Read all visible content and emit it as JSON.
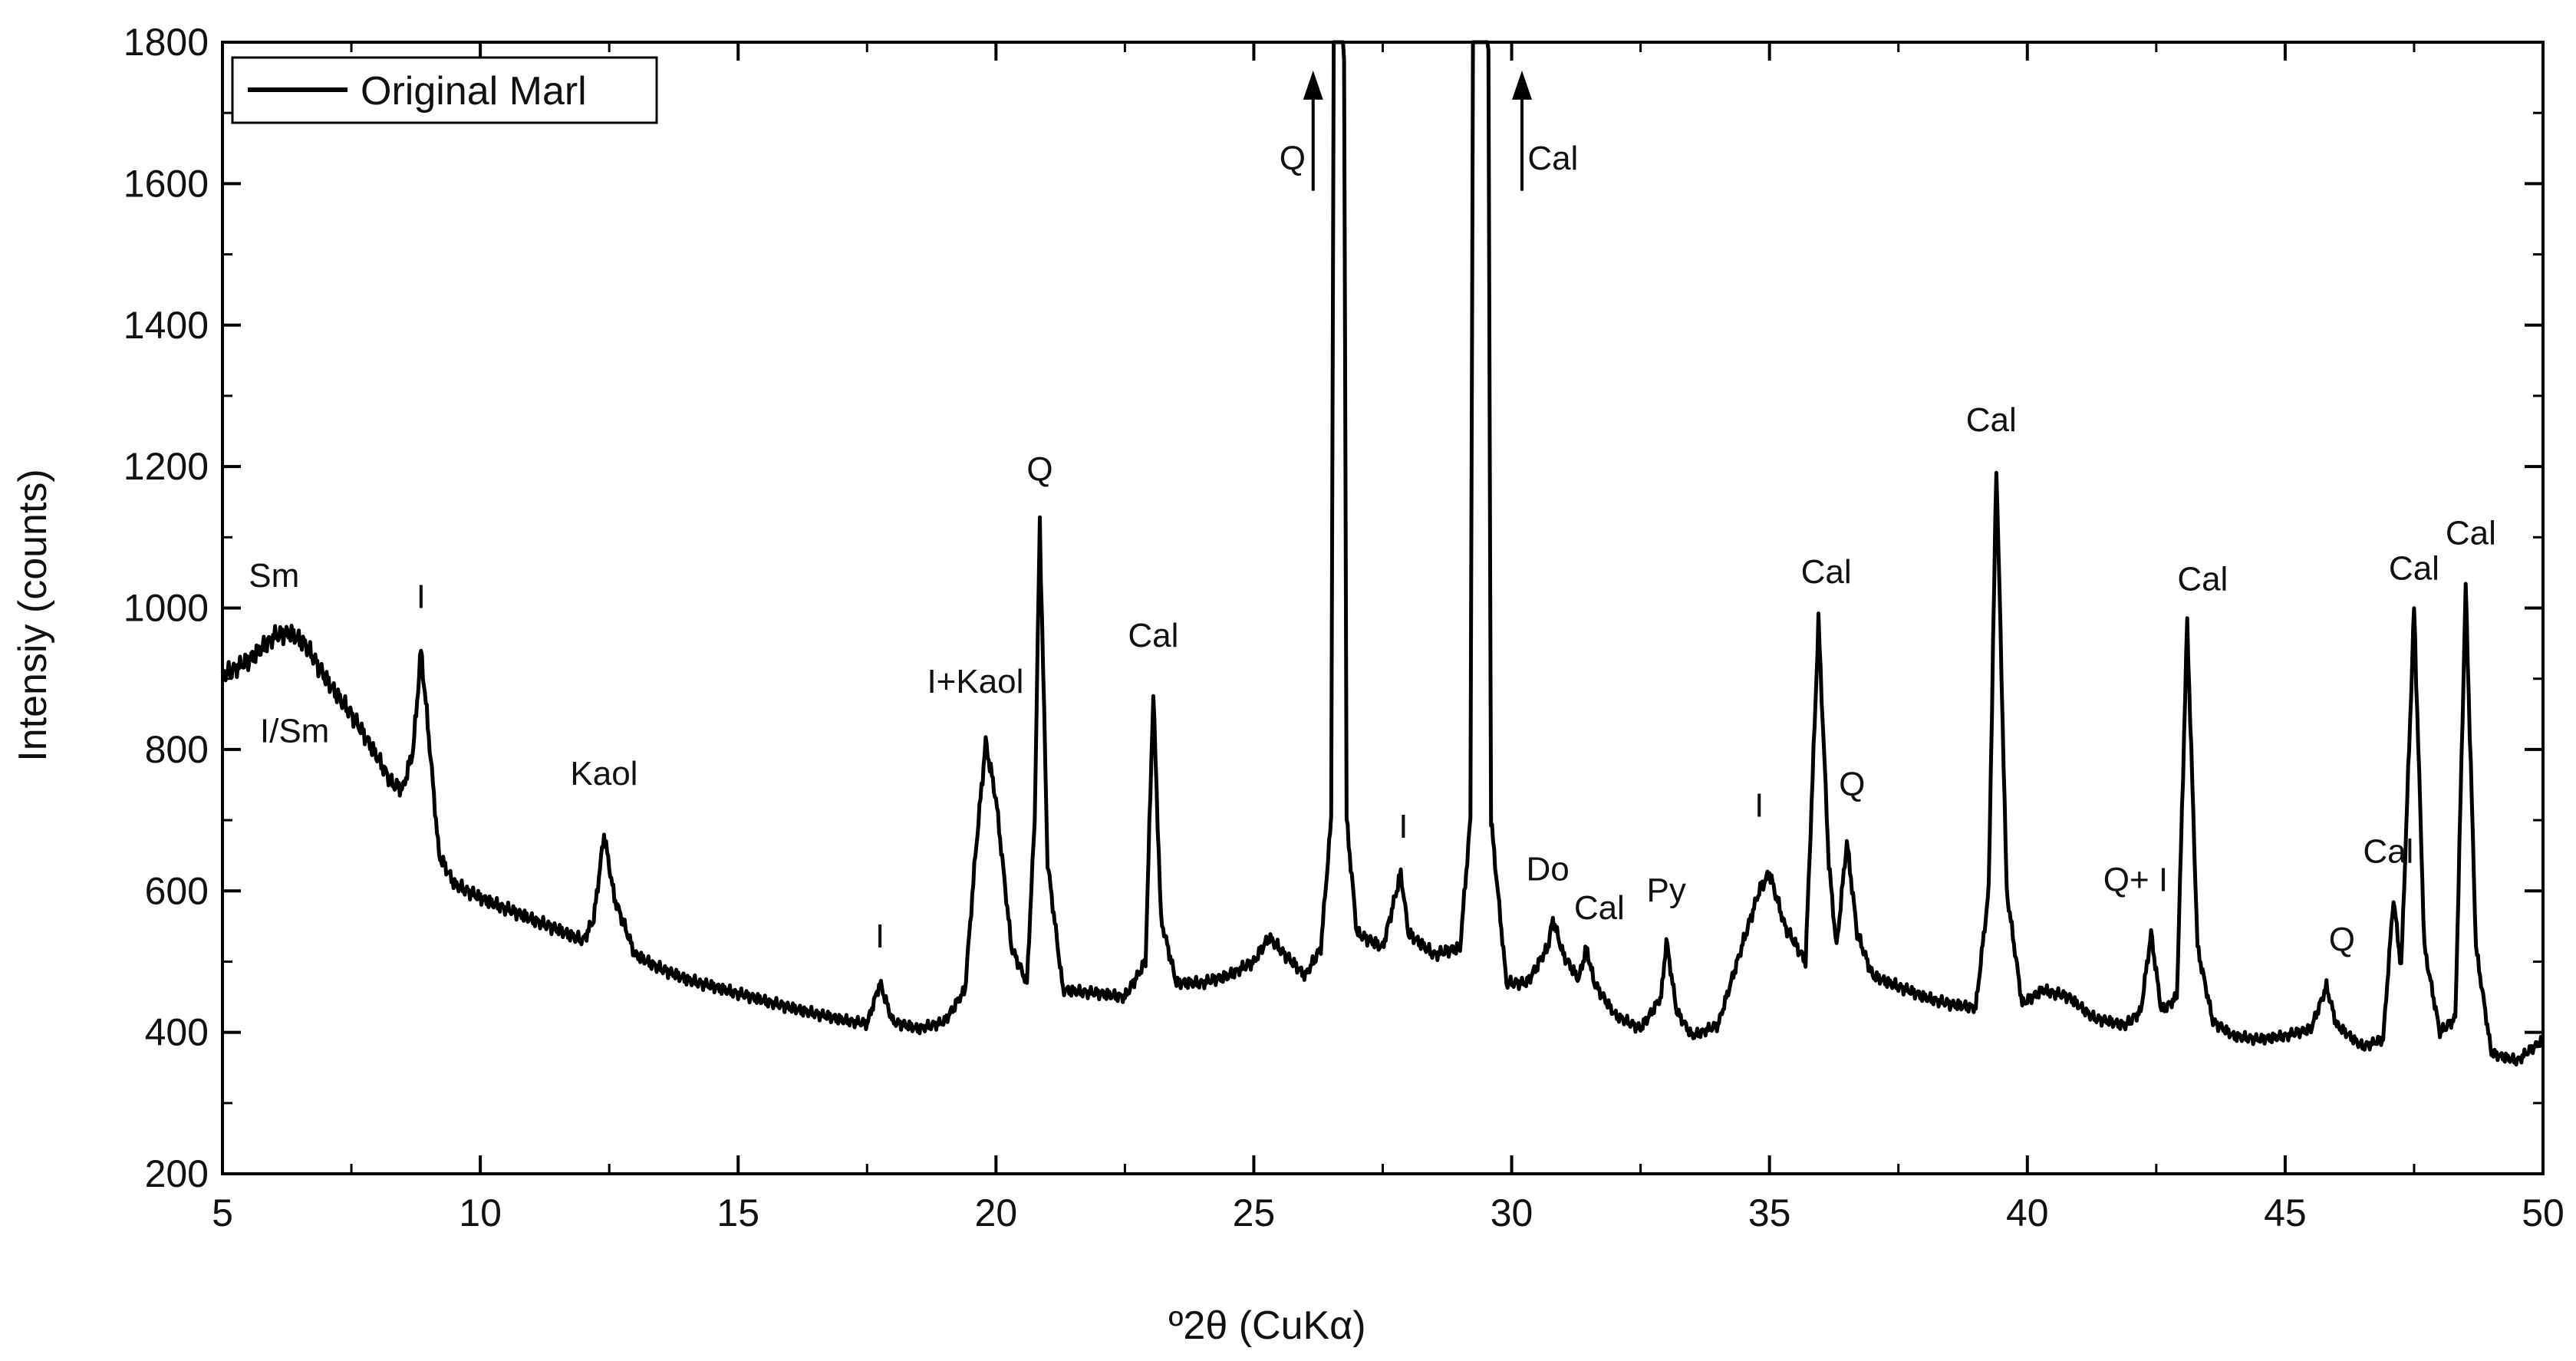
{
  "chart_data": {
    "type": "line",
    "xlabel": "º2θ (CuKα)",
    "ylabel": "Intensiy (counts)",
    "xlim": [
      5,
      50
    ],
    "ylim": [
      200,
      1800
    ],
    "x_ticks": [
      5,
      10,
      15,
      20,
      25,
      30,
      35,
      40,
      45,
      50
    ],
    "y_ticks": [
      200,
      400,
      600,
      800,
      1000,
      1200,
      1400,
      1600,
      1800
    ],
    "grid": false,
    "legend": {
      "position": "top-left",
      "entries": [
        "Original Marl"
      ]
    },
    "series": [
      {
        "name": "Original Marl",
        "color": "#000000",
        "points": [
          [
            5.0,
            905
          ],
          [
            5.5,
            925
          ],
          [
            6.0,
            960
          ],
          [
            6.3,
            965
          ],
          [
            6.6,
            950
          ],
          [
            7.0,
            900
          ],
          [
            7.5,
            850
          ],
          [
            8.0,
            790
          ],
          [
            8.3,
            750
          ],
          [
            8.5,
            745
          ],
          [
            8.7,
            800
          ],
          [
            8.85,
            940
          ],
          [
            9.0,
            820
          ],
          [
            9.2,
            650
          ],
          [
            9.5,
            610
          ],
          [
            10.0,
            590
          ],
          [
            10.5,
            575
          ],
          [
            11.0,
            560
          ],
          [
            11.5,
            545
          ],
          [
            12.0,
            530
          ],
          [
            12.2,
            560
          ],
          [
            12.4,
            680
          ],
          [
            12.6,
            590
          ],
          [
            13.0,
            510
          ],
          [
            13.5,
            490
          ],
          [
            14.0,
            475
          ],
          [
            15.0,
            455
          ],
          [
            16.0,
            435
          ],
          [
            17.0,
            418
          ],
          [
            17.5,
            412
          ],
          [
            17.75,
            470
          ],
          [
            18.0,
            415
          ],
          [
            18.5,
            405
          ],
          [
            19.0,
            415
          ],
          [
            19.4,
            460
          ],
          [
            19.6,
            650
          ],
          [
            19.8,
            810
          ],
          [
            20.0,
            730
          ],
          [
            20.3,
            520
          ],
          [
            20.6,
            470
          ],
          [
            20.75,
            700
          ],
          [
            20.85,
            1120
          ],
          [
            21.0,
            640
          ],
          [
            21.3,
            460
          ],
          [
            22.0,
            455
          ],
          [
            22.5,
            450
          ],
          [
            22.9,
            500
          ],
          [
            23.05,
            880
          ],
          [
            23.2,
            560
          ],
          [
            23.5,
            470
          ],
          [
            24.0,
            470
          ],
          [
            24.5,
            480
          ],
          [
            25.0,
            500
          ],
          [
            25.3,
            535
          ],
          [
            25.6,
            510
          ],
          [
            26.0,
            480
          ],
          [
            26.3,
            520
          ],
          [
            26.5,
            700
          ],
          [
            26.55,
            1800
          ],
          [
            26.75,
            1800
          ],
          [
            26.8,
            700
          ],
          [
            27.0,
            540
          ],
          [
            27.5,
            520
          ],
          [
            27.85,
            625
          ],
          [
            28.0,
            540
          ],
          [
            28.5,
            510
          ],
          [
            29.0,
            520
          ],
          [
            29.2,
            700
          ],
          [
            29.25,
            1800
          ],
          [
            29.55,
            1800
          ],
          [
            29.6,
            700
          ],
          [
            29.9,
            470
          ],
          [
            30.3,
            470
          ],
          [
            30.7,
            520
          ],
          [
            30.8,
            560
          ],
          [
            31.0,
            510
          ],
          [
            31.3,
            475
          ],
          [
            31.45,
            520
          ],
          [
            31.6,
            470
          ],
          [
            32.0,
            425
          ],
          [
            32.5,
            405
          ],
          [
            32.9,
            450
          ],
          [
            33.0,
            530
          ],
          [
            33.2,
            430
          ],
          [
            33.5,
            395
          ],
          [
            34.0,
            410
          ],
          [
            34.5,
            530
          ],
          [
            34.8,
            600
          ],
          [
            35.0,
            625
          ],
          [
            35.3,
            550
          ],
          [
            35.7,
            500
          ],
          [
            35.95,
            980
          ],
          [
            36.15,
            640
          ],
          [
            36.3,
            520
          ],
          [
            36.5,
            670
          ],
          [
            36.7,
            540
          ],
          [
            37.0,
            480
          ],
          [
            37.5,
            465
          ],
          [
            38.0,
            450
          ],
          [
            38.5,
            440
          ],
          [
            39.0,
            435
          ],
          [
            39.25,
            600
          ],
          [
            39.4,
            1205
          ],
          [
            39.6,
            600
          ],
          [
            39.9,
            440
          ],
          [
            40.3,
            460
          ],
          [
            40.8,
            450
          ],
          [
            41.3,
            420
          ],
          [
            41.9,
            410
          ],
          [
            42.2,
            430
          ],
          [
            42.4,
            540
          ],
          [
            42.6,
            430
          ],
          [
            42.9,
            450
          ],
          [
            43.1,
            980
          ],
          [
            43.3,
            520
          ],
          [
            43.6,
            415
          ],
          [
            44.0,
            395
          ],
          [
            44.5,
            390
          ],
          [
            45.0,
            395
          ],
          [
            45.5,
            405
          ],
          [
            45.8,
            465
          ],
          [
            46.0,
            410
          ],
          [
            46.5,
            380
          ],
          [
            46.9,
            390
          ],
          [
            47.1,
            590
          ],
          [
            47.25,
            490
          ],
          [
            47.5,
            1000
          ],
          [
            47.7,
            520
          ],
          [
            48.0,
            400
          ],
          [
            48.3,
            420
          ],
          [
            48.5,
            1030
          ],
          [
            48.7,
            520
          ],
          [
            49.0,
            370
          ],
          [
            49.5,
            360
          ],
          [
            50.0,
            390
          ]
        ]
      }
    ],
    "annotations": [
      {
        "text": "Sm",
        "x": 6.0,
        "y": 1030
      },
      {
        "text": "I/Sm",
        "x": 6.4,
        "y": 810
      },
      {
        "text": "I",
        "x": 8.85,
        "y": 1000
      },
      {
        "text": "Kaol",
        "x": 12.4,
        "y": 750
      },
      {
        "text": "I",
        "x": 17.75,
        "y": 520
      },
      {
        "text": "I+Kaol",
        "x": 19.6,
        "y": 880
      },
      {
        "text": "Q",
        "x": 20.85,
        "y": 1180
      },
      {
        "text": "Cal",
        "x": 23.05,
        "y": 945
      },
      {
        "text": "Q",
        "x": 25.75,
        "y": 1620,
        "arrow": {
          "x": 26.15,
          "y_from": 1590,
          "y_to": 1760
        }
      },
      {
        "text": "Cal",
        "x": 30.8,
        "y": 1620,
        "arrow": {
          "x": 30.2,
          "y_from": 1590,
          "y_to": 1760
        }
      },
      {
        "text": "I",
        "x": 27.9,
        "y": 675
      },
      {
        "text": "Do",
        "x": 30.7,
        "y": 615
      },
      {
        "text": "Cal",
        "x": 31.7,
        "y": 560
      },
      {
        "text": "Py",
        "x": 33.0,
        "y": 585
      },
      {
        "text": "I",
        "x": 34.8,
        "y": 705
      },
      {
        "text": "Cal",
        "x": 36.1,
        "y": 1035
      },
      {
        "text": "Q",
        "x": 36.6,
        "y": 735
      },
      {
        "text": "Cal",
        "x": 39.3,
        "y": 1250
      },
      {
        "text": "Q+ I",
        "x": 42.1,
        "y": 600
      },
      {
        "text": "Cal",
        "x": 43.4,
        "y": 1025
      },
      {
        "text": "Q",
        "x": 46.1,
        "y": 515
      },
      {
        "text": "Cal",
        "x": 47.0,
        "y": 640
      },
      {
        "text": "Cal",
        "x": 47.5,
        "y": 1040
      },
      {
        "text": "Cal",
        "x": 48.6,
        "y": 1090
      }
    ]
  }
}
